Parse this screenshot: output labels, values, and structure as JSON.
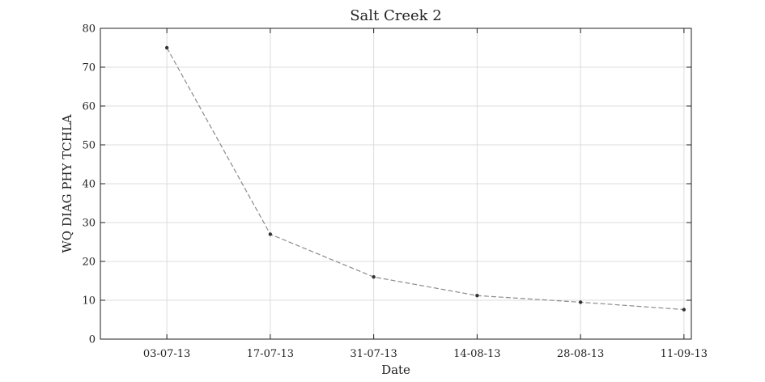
{
  "chart_data": {
    "type": "line",
    "title": "Salt Creek 2",
    "xlabel": "Date",
    "ylabel": "WQ DIAG PHY TCHLA",
    "x": [
      "2013-07-03",
      "2013-07-17",
      "2013-07-31",
      "2013-08-14",
      "2013-08-28",
      "2013-09-11"
    ],
    "xlim": [
      "2013-06-24",
      "2013-09-12"
    ],
    "ylim": [
      0,
      80
    ],
    "yticks": [
      0,
      10,
      20,
      30,
      40,
      50,
      60,
      70,
      80
    ],
    "xticks": [
      "2013-07-03",
      "2013-07-17",
      "2013-07-31",
      "2013-08-14",
      "2013-08-28",
      "2013-09-11"
    ],
    "xtick_labels": [
      "03-07-13",
      "17-07-13",
      "31-07-13",
      "14-08-13",
      "28-08-13",
      "11-09-13"
    ],
    "grid": true,
    "series": [
      {
        "x": [
          "2013-07-03",
          "2013-07-17",
          "2013-07-31",
          "2013-08-14",
          "2013-08-28",
          "2013-09-11"
        ],
        "values": [
          75,
          27,
          16,
          11.2,
          9.5,
          7.6
        ],
        "line_color": "#8c8c8c",
        "marker_color": "#333333",
        "line_style": "dashed"
      }
    ]
  }
}
